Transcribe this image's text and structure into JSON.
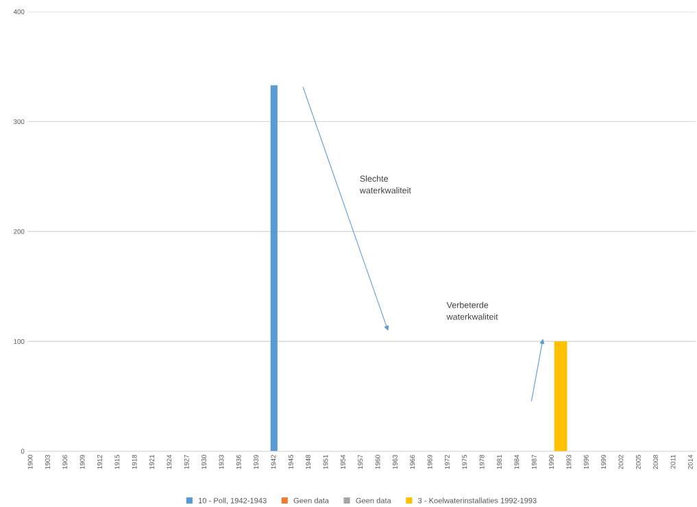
{
  "chart_data": {
    "type": "bar",
    "xlim": [
      1899.5,
      2014.8
    ],
    "xticks": [
      1900,
      1903,
      1906,
      1909,
      1912,
      1915,
      1918,
      1921,
      1924,
      1927,
      1930,
      1933,
      1936,
      1939,
      1942,
      1945,
      1948,
      1951,
      1954,
      1957,
      1960,
      1963,
      1966,
      1969,
      1972,
      1975,
      1978,
      1981,
      1984,
      1987,
      1990,
      1993,
      1996,
      1999,
      2002,
      2005,
      2008,
      2011,
      2014
    ],
    "ylim": [
      0,
      400
    ],
    "yticks": [
      0,
      100,
      200,
      300,
      400
    ],
    "grid": "y",
    "legend": "bottom",
    "series": [
      {
        "name": "10 - Poll, 1942-1943",
        "color": "#5b9bd5",
        "x": [
          1942
        ],
        "values": [
          333
        ]
      },
      {
        "name": "Geen data",
        "color": "#ed7d31"
      },
      {
        "name": "Geen data",
        "color": "#a5a5a5"
      },
      {
        "name": "3 - Koelwaterinstallaties 1992-1993",
        "color": "#ffc000",
        "x": [
          1991,
          1992
        ],
        "values": [
          100,
          100
        ]
      }
    ],
    "annotations": [
      "Slechte\nwaterkwaliteit",
      "Verbeterde\nwaterkwaliteit"
    ]
  }
}
